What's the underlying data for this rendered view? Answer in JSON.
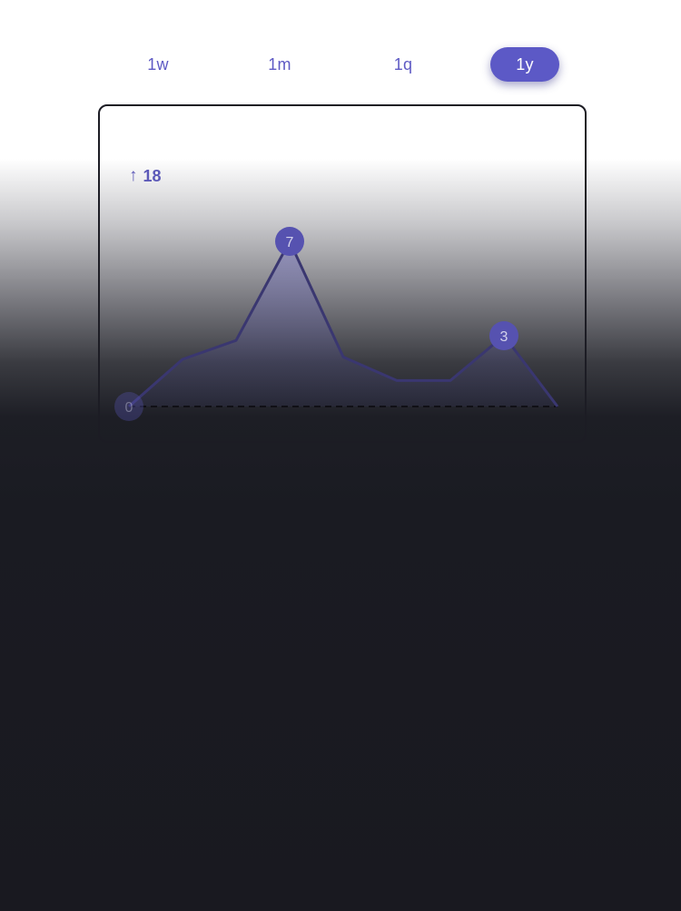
{
  "tabs": [
    {
      "label": "1w",
      "active": false
    },
    {
      "label": "1m",
      "active": false
    },
    {
      "label": "1q",
      "active": false
    },
    {
      "label": "1y",
      "active": true
    }
  ],
  "summary": {
    "arrow": "↑",
    "value": "18"
  },
  "colors": {
    "accent": "#5c59c6",
    "line": "#3a3770",
    "marker": "#5652b0"
  },
  "chart_data": {
    "type": "area",
    "x": [
      0,
      1,
      2,
      3,
      4,
      5,
      6,
      7,
      8
    ],
    "series": [
      {
        "values": [
          0,
          2,
          2.8,
          7,
          2.1,
          1.1,
          1.1,
          3,
          0
        ]
      }
    ],
    "point_labels": [
      {
        "index": 0,
        "text": "0"
      },
      {
        "index": 3,
        "text": "7"
      },
      {
        "index": 7,
        "text": "3"
      }
    ],
    "ylim": [
      0,
      7
    ],
    "baseline": 0,
    "baseline_style": "dashed",
    "grid": false,
    "legend": "none"
  }
}
